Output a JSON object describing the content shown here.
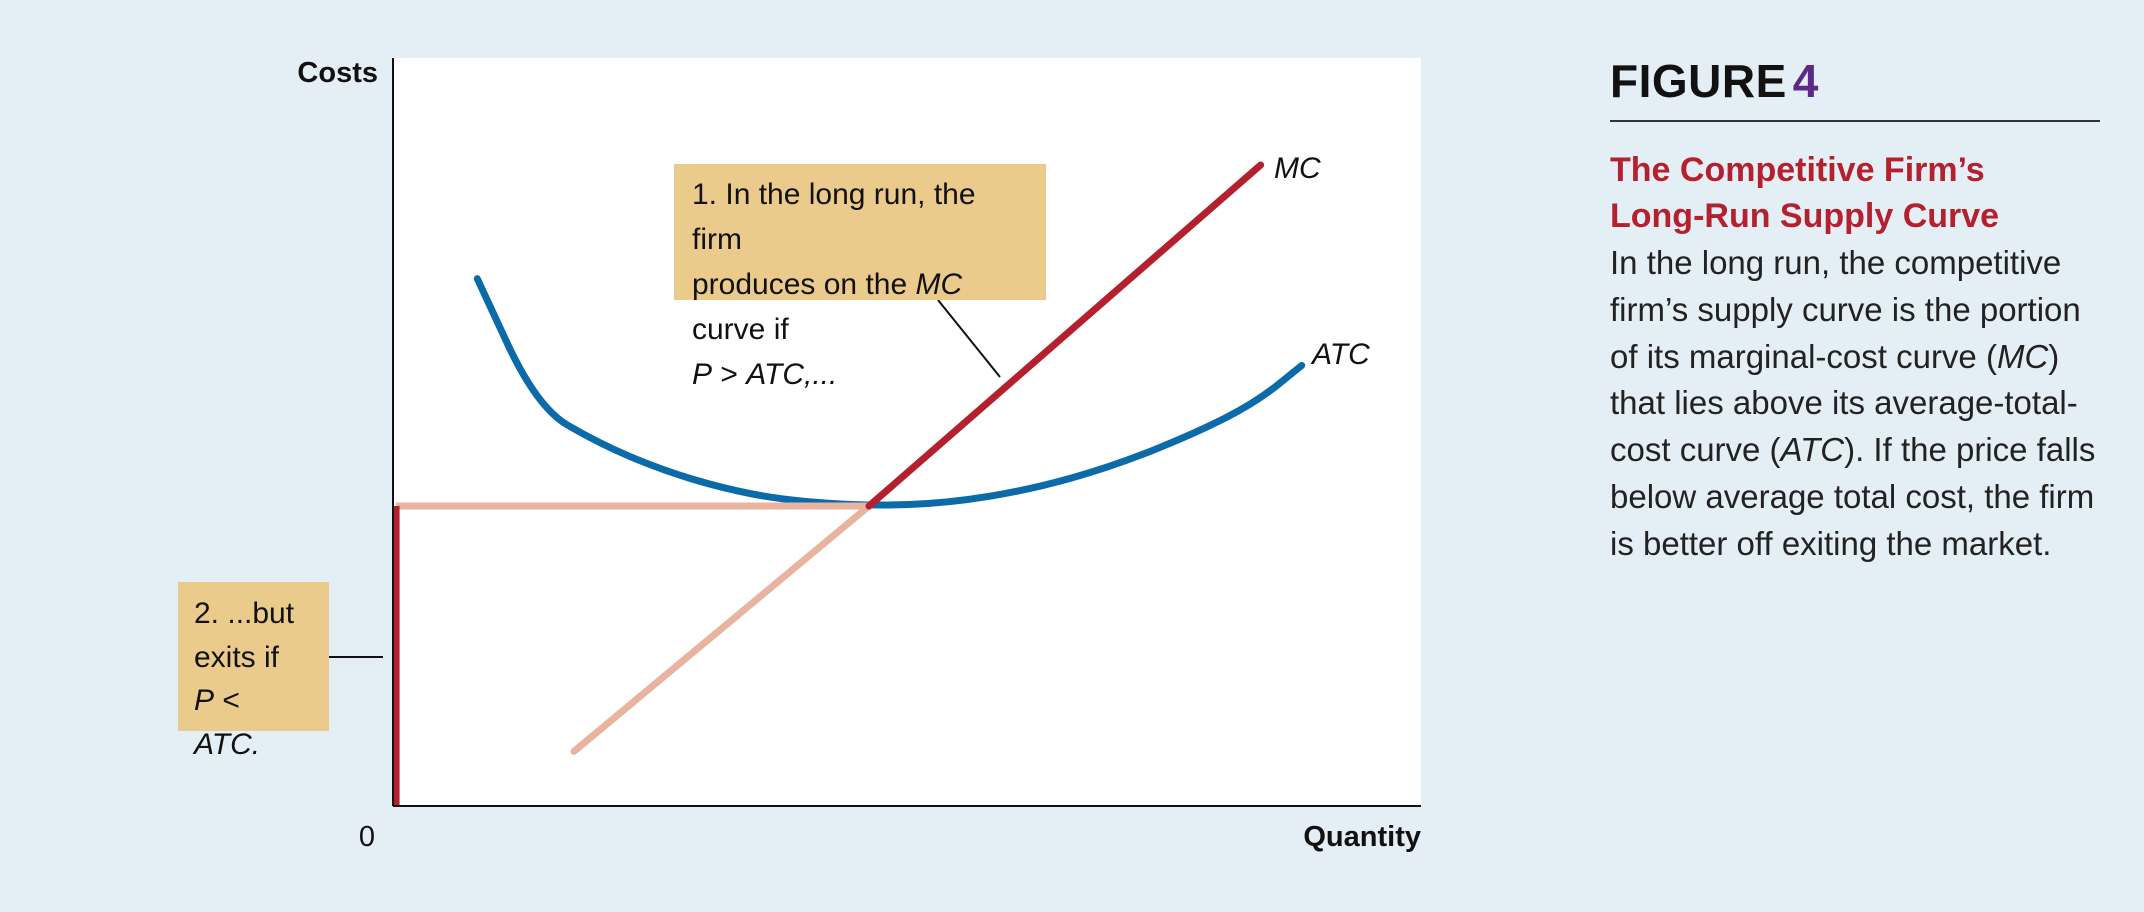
{
  "colors": {
    "background": "#e3eef5",
    "plot_bg": "#ffffff",
    "mc": "#b5202e",
    "mc_below": "#e8b4a0",
    "atc": "#0b6aa8",
    "callout": "#ebcb8b"
  },
  "chart_data": {
    "type": "line",
    "xlabel": "Quantity",
    "ylabel": "Costs",
    "origin_label": "0",
    "xlim": [
      0,
      100
    ],
    "ylim": [
      0,
      100
    ],
    "grid": false,
    "series": [
      {
        "name": "MC",
        "label_text": "MC",
        "points": [
          [
            17.6,
            7.3
          ],
          [
            46.3,
            40.1
          ],
          [
            84.4,
            85.7
          ]
        ]
      },
      {
        "name": "ATC",
        "label_text": "ATC",
        "points": [
          [
            8.2,
            70.5
          ],
          [
            14,
            53.3
          ],
          [
            20,
            48.5
          ],
          [
            26,
            45.0
          ],
          [
            32,
            42.5
          ],
          [
            38,
            40.9
          ],
          [
            46.3,
            40.1
          ],
          [
            54,
            40.5
          ],
          [
            62,
            42.3
          ],
          [
            70,
            45.4
          ],
          [
            78,
            49.8
          ],
          [
            84,
            54.0
          ],
          [
            88.4,
            58.9
          ]
        ]
      }
    ],
    "supply_curve": {
      "vertical_segment": [
        [
          0.3,
          0
        ],
        [
          0.3,
          40.1
        ]
      ],
      "horizontal_segment": [
        [
          0.3,
          40.1
        ],
        [
          46.3,
          40.1
        ]
      ]
    }
  },
  "callouts": {
    "one_line1": "1. In the long run, the firm",
    "one_line2a": "produces on the ",
    "one_mc": "MC",
    "one_line2b": " curve if",
    "one_p": "P",
    "one_gt": " > ",
    "one_atc": "ATC,...",
    "two_line1": "2. ...but",
    "two_line2": "exits if",
    "two_p": "P",
    "two_lt": " < ",
    "two_atc": "ATC."
  },
  "figure": {
    "heading": "FIGURE",
    "number": "4",
    "title_line1": "The Competitive Firm’s",
    "title_line2": "Long-Run Supply Curve",
    "caption_1": "In the long run, the competitive firm’s supply curve is the portion of its marginal-cost curve (",
    "caption_mc": "MC",
    "caption_2": ") that lies above its average-total-cost curve (",
    "caption_atc": "ATC",
    "caption_3": "). If the price falls below average total cost, the firm is better off exiting the market."
  }
}
